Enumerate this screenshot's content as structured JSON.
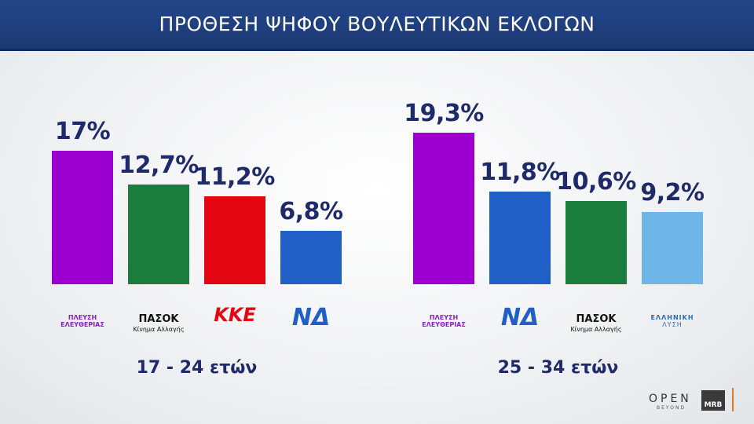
{
  "title": "ΠΡΟΘΕΣΗ ΨΗΦΟΥ ΒΟΥΛΕΥΤΙΚΩΝ ΕΚΛΟΓΩΝ",
  "chart_data": [
    {
      "type": "bar",
      "xlabel": "17 - 24 ετών",
      "categories": [
        "ΠΛΕΥΣΗ\nΕΛΕΥΘΕΡΙΑΣ",
        "ΠΑΣΟΚ\nΚίνημα Αλλαγής",
        "ΚΚΕ",
        "ΝΔ"
      ],
      "values": [
        17,
        12.7,
        11.2,
        6.8
      ],
      "value_labels": [
        "17%",
        "12,7%",
        "11,2%",
        "6,8%"
      ],
      "colors": [
        "#9b00d0",
        "#1a7d3b",
        "#e30713",
        "#1f5fc6"
      ]
    },
    {
      "type": "bar",
      "xlabel": "25 - 34 ετών",
      "categories": [
        "ΠΛΕΥΣΗ\nΕΛΕΥΘΕΡΙΑΣ",
        "ΝΔ",
        "ΠΑΣΟΚ\nΚίνημα Αλλαγής",
        "ΕΛΛΗΝΙΚΗ\nΛΥΣΗ"
      ],
      "values": [
        19.3,
        11.8,
        10.6,
        9.2
      ],
      "value_labels": [
        "19,3%",
        "11,8%",
        "10,6%",
        "9,2%"
      ],
      "colors": [
        "#9b00d0",
        "#1f5fc6",
        "#1a7d3b",
        "#6fb5e8"
      ]
    }
  ],
  "branding": {
    "channel": "OPEN",
    "channel_sub": "BEYOND",
    "pollster": "MRB"
  }
}
